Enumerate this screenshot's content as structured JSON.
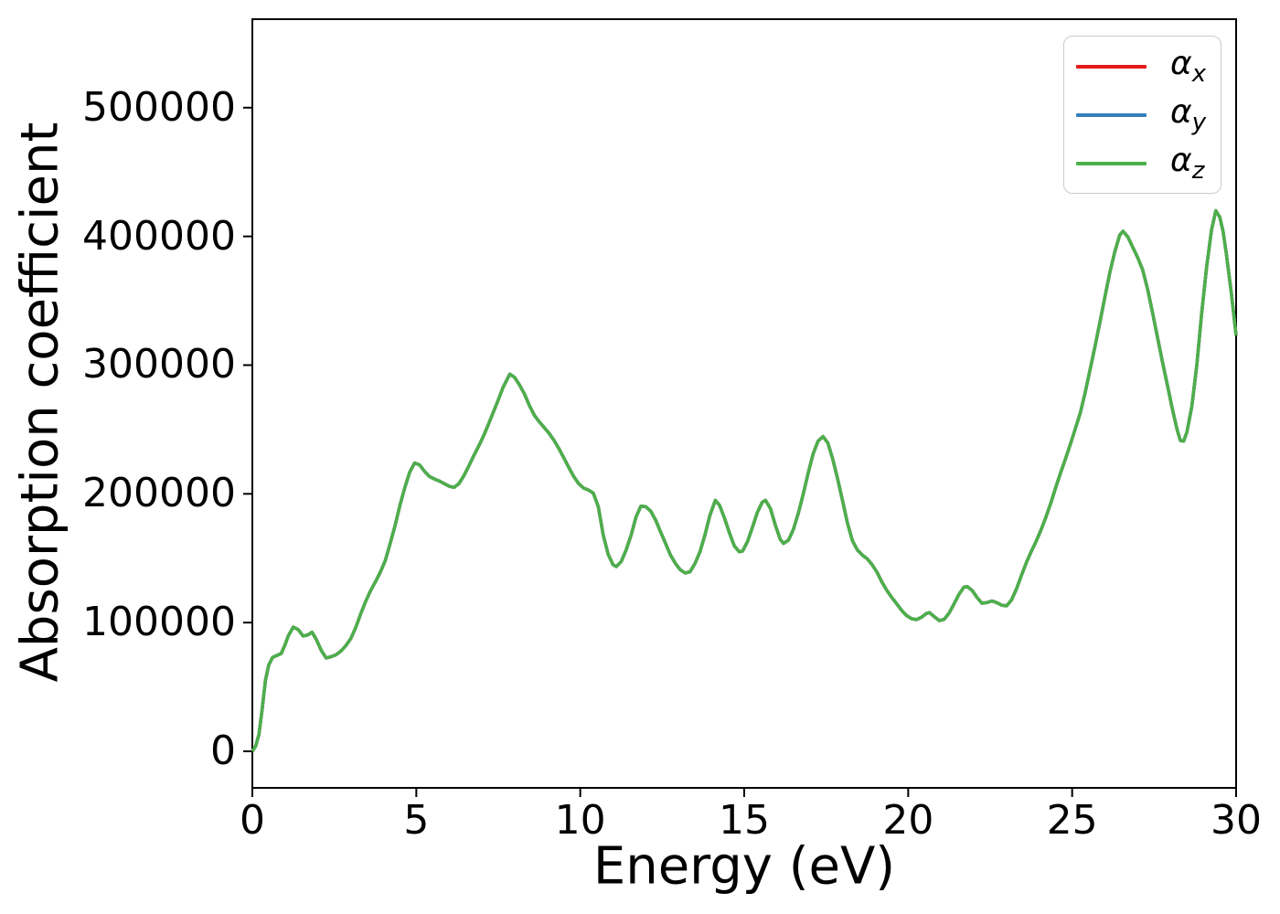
{
  "figure": {
    "background": "#ffffff",
    "axis_color": "#000000"
  },
  "chart_data": {
    "type": "line",
    "title": "",
    "xlabel": "Energy (eV)",
    "ylabel": "Absorption coefficient",
    "xlim": [
      0,
      30
    ],
    "ylim": [
      -28000,
      568000
    ],
    "x_ticks": [
      0,
      5,
      10,
      15,
      20,
      25,
      30
    ],
    "y_ticks": [
      0,
      100000,
      200000,
      300000,
      400000,
      500000
    ],
    "grid": false,
    "legend_position": "upper right",
    "series": [
      {
        "name": "alpha_x",
        "label_base": "α",
        "label_sub": "x",
        "color": "#e41a1c"
      },
      {
        "name": "alpha_y",
        "label_base": "α",
        "label_sub": "y",
        "color": "#377eb8"
      },
      {
        "name": "alpha_z",
        "label_base": "α",
        "label_sub": "z",
        "color": "#4daf4a"
      }
    ],
    "series_note": "All three series coincide exactly; only the green α_z curve (drawn last) is visible.",
    "x": [
      0,
      0.1,
      0.2,
      0.3,
      0.4,
      0.5,
      0.62,
      0.75,
      0.88,
      1.0,
      1.1,
      1.25,
      1.4,
      1.55,
      1.7,
      1.82,
      1.95,
      2.1,
      2.25,
      2.4,
      2.55,
      2.7,
      2.85,
      3.0,
      3.15,
      3.3,
      3.45,
      3.6,
      3.75,
      3.9,
      4.05,
      4.2,
      4.35,
      4.5,
      4.65,
      4.8,
      4.95,
      5.1,
      5.25,
      5.4,
      5.55,
      5.7,
      5.85,
      6.0,
      6.15,
      6.3,
      6.45,
      6.6,
      6.75,
      6.9,
      7.05,
      7.2,
      7.35,
      7.5,
      7.65,
      7.85,
      8.0,
      8.15,
      8.3,
      8.45,
      8.6,
      8.75,
      8.9,
      9.05,
      9.2,
      9.35,
      9.5,
      9.65,
      9.8,
      9.95,
      10.1,
      10.25,
      10.4,
      10.55,
      10.7,
      10.85,
      11.0,
      11.1,
      11.25,
      11.4,
      11.55,
      11.7,
      11.85,
      12.0,
      12.15,
      12.3,
      12.45,
      12.6,
      12.75,
      12.9,
      13.05,
      13.2,
      13.35,
      13.5,
      13.65,
      13.8,
      13.95,
      14.12,
      14.25,
      14.4,
      14.55,
      14.7,
      14.85,
      14.95,
      15.1,
      15.25,
      15.4,
      15.55,
      15.65,
      15.8,
      15.95,
      16.1,
      16.2,
      16.35,
      16.5,
      16.65,
      16.8,
      16.95,
      17.1,
      17.25,
      17.4,
      17.55,
      17.7,
      17.85,
      18.0,
      18.15,
      18.3,
      18.45,
      18.6,
      18.75,
      18.9,
      19.05,
      19.2,
      19.35,
      19.5,
      19.65,
      19.8,
      19.95,
      20.1,
      20.25,
      20.4,
      20.55,
      20.65,
      20.8,
      20.95,
      21.1,
      21.25,
      21.4,
      21.55,
      21.7,
      21.8,
      21.95,
      22.1,
      22.25,
      22.4,
      22.55,
      22.7,
      22.85,
      23.0,
      23.15,
      23.3,
      23.45,
      23.6,
      23.75,
      23.9,
      24.05,
      24.2,
      24.35,
      24.5,
      24.65,
      24.8,
      24.95,
      25.1,
      25.25,
      25.4,
      25.55,
      25.7,
      25.85,
      26.0,
      26.15,
      26.3,
      26.45,
      26.55,
      26.7,
      26.85,
      27.0,
      27.15,
      27.3,
      27.45,
      27.6,
      27.75,
      27.9,
      28.05,
      28.2,
      28.3,
      28.4,
      28.5,
      28.65,
      28.8,
      28.95,
      29.1,
      29.25,
      29.38,
      29.5,
      29.6,
      29.7,
      29.85,
      30.0
    ],
    "values_shared": [
      0,
      4000,
      13000,
      33000,
      55000,
      67000,
      73000,
      74500,
      76000,
      83000,
      90000,
      96500,
      94500,
      89500,
      90500,
      92500,
      87000,
      78500,
      72500,
      73500,
      75000,
      77800,
      82000,
      87500,
      96000,
      106500,
      116000,
      124500,
      131500,
      139000,
      148000,
      161000,
      175000,
      191000,
      205000,
      217000,
      224000,
      222500,
      217500,
      213500,
      211500,
      210000,
      208000,
      206000,
      205000,
      208000,
      214000,
      221500,
      229500,
      237000,
      245000,
      254000,
      263500,
      273000,
      283000,
      293000,
      290500,
      284500,
      277500,
      268500,
      261000,
      256000,
      251500,
      247000,
      241500,
      235000,
      228000,
      220500,
      213500,
      208000,
      204500,
      203000,
      200500,
      190000,
      168000,
      153000,
      145000,
      143500,
      147500,
      156500,
      168000,
      182000,
      190500,
      190000,
      186500,
      179500,
      170500,
      161500,
      152500,
      146000,
      141000,
      138500,
      139500,
      146000,
      155000,
      168000,
      183000,
      195000,
      191000,
      181000,
      169500,
      159500,
      155000,
      155500,
      163000,
      174000,
      185500,
      193500,
      195000,
      188500,
      175500,
      164500,
      161500,
      164000,
      172500,
      185000,
      200000,
      216000,
      231000,
      241000,
      244500,
      239500,
      227000,
      211500,
      194500,
      177000,
      163500,
      156500,
      152500,
      149500,
      145000,
      139000,
      131500,
      125000,
      119500,
      114500,
      109500,
      105500,
      103000,
      102300,
      104000,
      107000,
      107800,
      104500,
      101500,
      102500,
      107500,
      114500,
      122000,
      127500,
      128000,
      125000,
      119500,
      115000,
      115500,
      116800,
      115500,
      113500,
      113000,
      117500,
      126000,
      136500,
      146500,
      155000,
      163000,
      172000,
      182000,
      193000,
      205000,
      216500,
      227500,
      239000,
      251000,
      263000,
      279000,
      297000,
      315000,
      334000,
      353000,
      372000,
      388000,
      401000,
      404000,
      399500,
      391500,
      383500,
      374000,
      359000,
      341000,
      322000,
      303000,
      285000,
      266500,
      250000,
      241500,
      241000,
      248000,
      268000,
      300000,
      340000,
      376000,
      405000,
      420000,
      415000,
      404000,
      387000,
      357000,
      323000
    ]
  }
}
